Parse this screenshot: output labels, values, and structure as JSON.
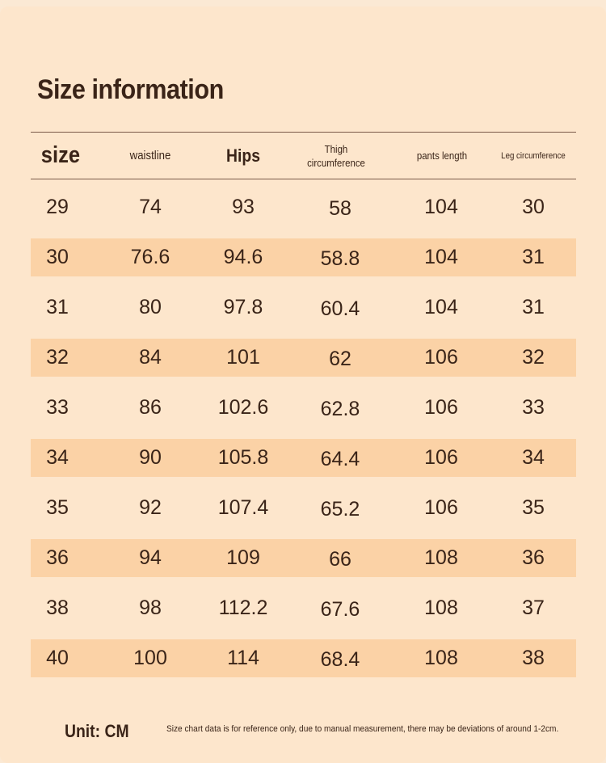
{
  "title": "Size information",
  "headers": {
    "size": "size",
    "waistline": "waistline",
    "hips": "Hips",
    "thigh_line1": "Thigh",
    "thigh_line2": "circumference",
    "pants_length": "pants length",
    "leg_circumference": "Leg circumference"
  },
  "rows": [
    [
      "29",
      "74",
      "93",
      "58",
      "104",
      "30"
    ],
    [
      "30",
      "76.6",
      "94.6",
      "58.8",
      "104",
      "31"
    ],
    [
      "31",
      "80",
      "97.8",
      "60.4",
      "104",
      "31"
    ],
    [
      "32",
      "84",
      "101",
      "62",
      "106",
      "32"
    ],
    [
      "33",
      "86",
      "102.6",
      "62.8",
      "106",
      "33"
    ],
    [
      "34",
      "90",
      "105.8",
      "64.4",
      "106",
      "34"
    ],
    [
      "35",
      "92",
      "107.4",
      "65.2",
      "106",
      "35"
    ],
    [
      "36",
      "94",
      "109",
      "66",
      "108",
      "36"
    ],
    [
      "38",
      "98",
      "112.2",
      "67.6",
      "108",
      "37"
    ],
    [
      "40",
      "100",
      "114",
      "68.4",
      "108",
      "38"
    ]
  ],
  "footer": {
    "unit": "Unit: CM",
    "note": "Size chart data is for reference only, due to manual measurement, there may be deviations of around 1-2cm."
  },
  "colors": {
    "background": "#fde6cc",
    "row_highlight": "#fbd2a6",
    "text": "#3a2418"
  }
}
